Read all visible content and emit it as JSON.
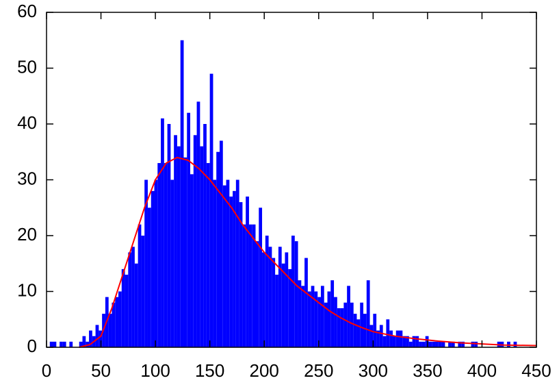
{
  "chart_data": {
    "type": "histogram",
    "bins": [
      0,
      3,
      6,
      9,
      12,
      15,
      18,
      21,
      24,
      27,
      30,
      33,
      36,
      39,
      42,
      45,
      48,
      51,
      54,
      57,
      60,
      63,
      66,
      69,
      72,
      75,
      78,
      81,
      84,
      87,
      90,
      93,
      96,
      99,
      102,
      105,
      108,
      111,
      114,
      117,
      120,
      123,
      126,
      129,
      132,
      135,
      138,
      141,
      144,
      147,
      150,
      153,
      156,
      159,
      162,
      165,
      168,
      171,
      174,
      177,
      180,
      183,
      186,
      189,
      192,
      195,
      198,
      201,
      204,
      207,
      210,
      213,
      216,
      219,
      222,
      225,
      228,
      231,
      234,
      237,
      240,
      243,
      246,
      249,
      252,
      255,
      258,
      261,
      264,
      267,
      270,
      273,
      276,
      279,
      282,
      285,
      288,
      291,
      294,
      297,
      300,
      303,
      306,
      309,
      312,
      315,
      318,
      321,
      324,
      327,
      330,
      333,
      336,
      339,
      342,
      345,
      348,
      351,
      354,
      357,
      360,
      363,
      366,
      369,
      372,
      375,
      378,
      381,
      384,
      387,
      390,
      393,
      396,
      399,
      402,
      405,
      408,
      411,
      414,
      417,
      420,
      423,
      426,
      429,
      432,
      435,
      438,
      441,
      444,
      447,
      450
    ],
    "values": [
      0,
      1,
      1,
      0,
      1,
      1,
      0,
      1,
      0,
      0,
      1,
      2,
      1,
      3,
      2,
      4,
      3,
      6,
      9,
      6,
      8,
      9,
      10,
      14,
      13,
      17,
      18,
      15,
      22,
      20,
      30,
      25,
      28,
      30,
      33,
      41,
      33,
      40,
      30,
      38,
      36,
      55,
      34,
      42,
      31,
      38,
      44,
      36,
      40,
      33,
      49,
      30,
      35,
      37,
      29,
      30,
      27,
      28,
      30,
      26,
      22,
      27,
      22,
      22,
      19,
      25,
      17,
      20,
      18,
      16,
      13,
      18,
      15,
      17,
      14,
      20,
      19,
      12,
      11,
      16,
      10,
      11,
      10,
      9,
      11,
      8,
      10,
      12,
      9,
      7,
      7,
      8,
      11,
      8,
      6,
      5,
      8,
      6,
      12,
      4,
      6,
      3,
      4,
      2,
      5,
      3,
      2,
      3,
      3,
      2,
      2,
      1,
      2,
      2,
      1,
      1,
      2,
      1,
      1,
      1,
      1,
      1,
      0,
      1,
      1,
      0,
      1,
      1,
      0,
      0,
      1,
      1,
      0,
      0,
      0,
      0,
      0,
      0,
      1,
      1,
      0,
      1,
      0,
      1,
      0,
      0,
      0,
      0,
      0,
      0
    ],
    "color": "#0000ff",
    "fit": {
      "color": "#ff0000",
      "x": [
        30,
        40,
        50,
        60,
        70,
        80,
        90,
        100,
        110,
        120,
        130,
        140,
        150,
        160,
        170,
        180,
        190,
        200,
        210,
        220,
        230,
        240,
        250,
        260,
        270,
        280,
        290,
        300,
        320,
        340,
        360,
        380,
        400,
        420,
        450
      ],
      "values": [
        0,
        0.5,
        2,
        7,
        13,
        19,
        25,
        30,
        33,
        34,
        33.5,
        32,
        30,
        27.5,
        25,
        22,
        19.5,
        17,
        15,
        13,
        11,
        9.5,
        8,
        6.5,
        5.3,
        4.3,
        3.5,
        2.8,
        2,
        1.5,
        1.1,
        0.8,
        0.6,
        0.4,
        0.3
      ]
    },
    "xlim": [
      0,
      450
    ],
    "xticks": [
      0,
      50,
      100,
      150,
      200,
      250,
      300,
      350,
      400,
      450
    ],
    "ylim": [
      0,
      60
    ],
    "yticks": [
      0,
      10,
      20,
      30,
      40,
      50,
      60
    ]
  }
}
